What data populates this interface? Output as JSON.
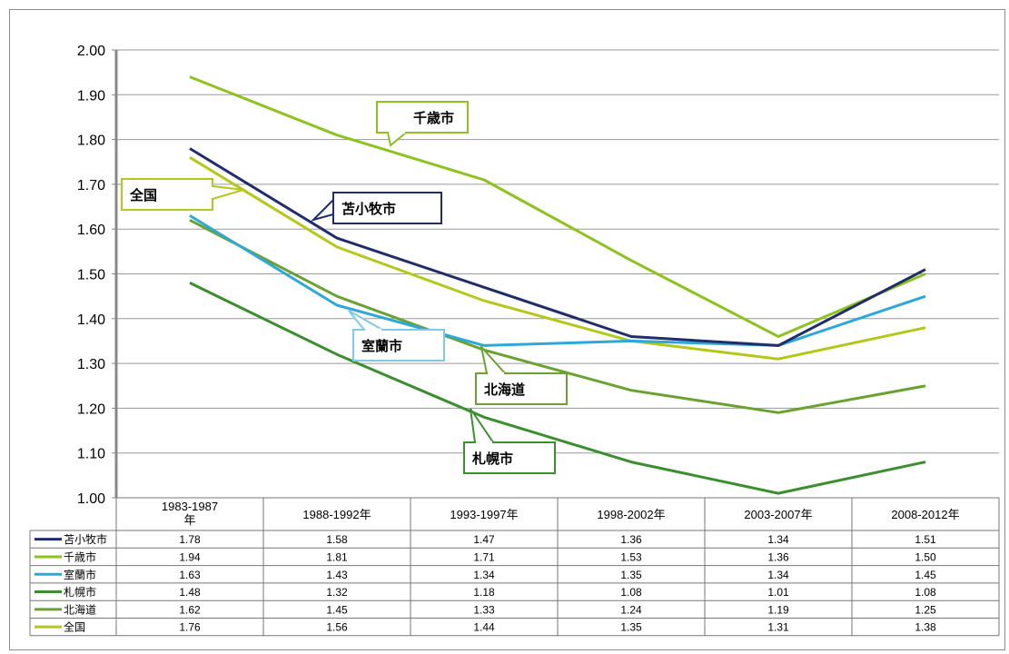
{
  "chart_data": {
    "type": "line",
    "title": "",
    "xlabel": "",
    "ylabel": "",
    "ylim": [
      1.0,
      2.0
    ],
    "y_ticks": [
      "2.00",
      "1.90",
      "1.80",
      "1.70",
      "1.60",
      "1.50",
      "1.40",
      "1.30",
      "1.20",
      "1.10",
      "1.00"
    ],
    "categories": [
      "1983-1987\n年",
      "1988-1992年",
      "1993-1997年",
      "1998-2002年",
      "2003-2007年",
      "2008-2012年"
    ],
    "grid": true,
    "legend": "data-table-below",
    "series": [
      {
        "name": "苫小牧市",
        "color": "#1f2d6b",
        "values": [
          1.78,
          1.58,
          1.47,
          1.36,
          1.34,
          1.51
        ],
        "cells": [
          "1.78",
          "1.58",
          "1.47",
          "1.36",
          "1.34",
          "1.51"
        ]
      },
      {
        "name": "千歳市",
        "color": "#8dc21f",
        "values": [
          1.94,
          1.81,
          1.71,
          1.53,
          1.36,
          1.5
        ],
        "cells": [
          "1.94",
          "1.81",
          "1.71",
          "1.53",
          "1.36",
          "1.50"
        ]
      },
      {
        "name": "室蘭市",
        "color": "#2ea8d8",
        "values": [
          1.63,
          1.43,
          1.34,
          1.35,
          1.34,
          1.45
        ],
        "cells": [
          "1.63",
          "1.43",
          "1.34",
          "1.35",
          "1.34",
          "1.45"
        ]
      },
      {
        "name": "札幌市",
        "color": "#3b8f2f",
        "values": [
          1.48,
          1.32,
          1.18,
          1.08,
          1.01,
          1.08
        ],
        "cells": [
          "1.48",
          "1.32",
          "1.18",
          "1.08",
          "1.01",
          "1.08"
        ]
      },
      {
        "name": "北海道",
        "color": "#6aa231",
        "values": [
          1.62,
          1.45,
          1.33,
          1.24,
          1.19,
          1.25
        ],
        "cells": [
          "1.62",
          "1.45",
          "1.33",
          "1.24",
          "1.19",
          "1.25"
        ]
      },
      {
        "name": "全国",
        "color": "#b3c81a",
        "values": [
          1.76,
          1.56,
          1.44,
          1.35,
          1.31,
          1.38
        ],
        "cells": [
          "1.76",
          "1.56",
          "1.44",
          "1.35",
          "1.31",
          "1.38"
        ]
      }
    ],
    "callouts": [
      {
        "label": "千歳市",
        "series": 1,
        "color": "#8dc21f"
      },
      {
        "label": "全国",
        "series": 5,
        "color": "#b3c81a"
      },
      {
        "label": "苫小牧市",
        "series": 0,
        "color": "#1f2d6b"
      },
      {
        "label": "室蘭市",
        "series": 2,
        "color": "#7fc8e8"
      },
      {
        "label": "北海道",
        "series": 4,
        "color": "#6aa231"
      },
      {
        "label": "札幌市",
        "series": 3,
        "color": "#3b8f2f"
      }
    ]
  }
}
